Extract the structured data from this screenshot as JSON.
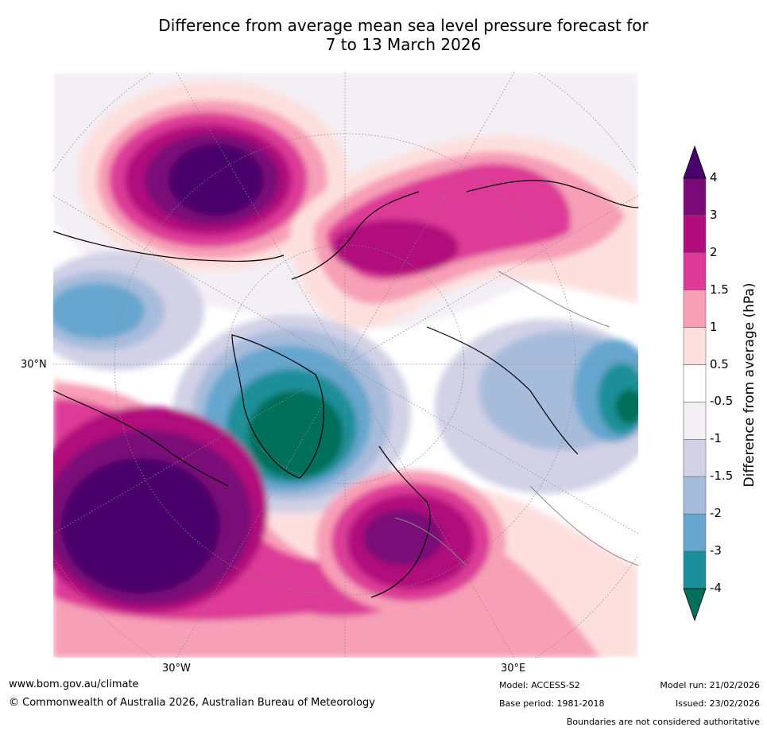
{
  "title": {
    "line1": "Difference from average mean sea level pressure forecast for",
    "line2": "7 to 13 March 2026"
  },
  "map": {
    "projection": "polar stereographic (Northern Hemisphere)",
    "lat_label": "30°N",
    "lon_labels": [
      "30°W",
      "30°E"
    ]
  },
  "colorbar": {
    "title": "Difference from average (hPa)",
    "ticks": [
      "4",
      "3",
      "2",
      "1.5",
      "1",
      "0.5",
      "-0.5",
      "-1",
      "-1.5",
      "-2",
      "-3",
      "-4"
    ],
    "colors": [
      "#4a006a",
      "#7a0a78",
      "#b10c7c",
      "#dd3a97",
      "#f79fb7",
      "#fde0de",
      "#ffffff",
      "#f3eff5",
      "#d2d1e6",
      "#a7bcdb",
      "#66a6cf",
      "#1a8f99",
      "#00705a"
    ]
  },
  "footer": {
    "url": "www.bom.gov.au/climate",
    "copyright": "© Commonwealth of Australia 2026, Australian Bureau of Meteorology",
    "model": "Model: ACCESS-S2",
    "base_period": "Base period: 1981-2018",
    "model_run": "Model run: 21/02/2026",
    "issued": "Issued: 23/02/2026",
    "disclaimer": "Boundaries are not considered authoritative"
  }
}
